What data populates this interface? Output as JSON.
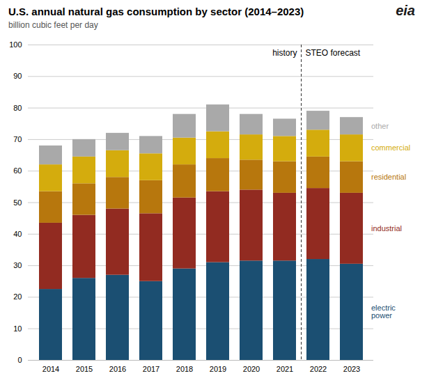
{
  "chart_data": {
    "type": "bar",
    "stacked": true,
    "title": "U.S. annual natural gas consumption by sector (2014–2023)",
    "subtitle": "billion cubic feet per day",
    "categories": [
      "2014",
      "2015",
      "2016",
      "2017",
      "2018",
      "2019",
      "2020",
      "2021",
      "2022",
      "2023"
    ],
    "series": [
      {
        "name": "electric\npower",
        "color": "#1b4f72",
        "values": [
          22.5,
          26.0,
          27.0,
          25.0,
          29.0,
          31.0,
          31.5,
          31.5,
          32.0,
          30.5
        ]
      },
      {
        "name": "industrial",
        "color": "#922b21",
        "values": [
          21.0,
          20.0,
          21.0,
          21.5,
          22.5,
          22.5,
          22.5,
          21.5,
          22.5,
          22.5
        ]
      },
      {
        "name": "residential",
        "color": "#b7770d",
        "values": [
          10.0,
          10.0,
          10.0,
          10.5,
          10.5,
          10.5,
          9.5,
          10.0,
          10.0,
          10.0
        ]
      },
      {
        "name": "commercial",
        "color": "#d4ac0d",
        "values": [
          8.5,
          8.5,
          8.5,
          8.5,
          8.5,
          8.5,
          8.0,
          8.0,
          8.5,
          8.5
        ]
      },
      {
        "name": "other",
        "color": "#a9a9a9",
        "values": [
          6.0,
          5.5,
          5.5,
          5.5,
          7.5,
          8.5,
          6.5,
          5.5,
          6.0,
          5.5
        ]
      }
    ],
    "ylim": [
      0,
      100
    ],
    "yticks": [
      0,
      10,
      20,
      30,
      40,
      50,
      60,
      70,
      80,
      90,
      100
    ],
    "grid": true,
    "annotations": [
      {
        "text": "history",
        "x": "2021"
      },
      {
        "text": "STEO forecast",
        "x": "2022"
      },
      {
        "text": "eia"
      }
    ]
  }
}
